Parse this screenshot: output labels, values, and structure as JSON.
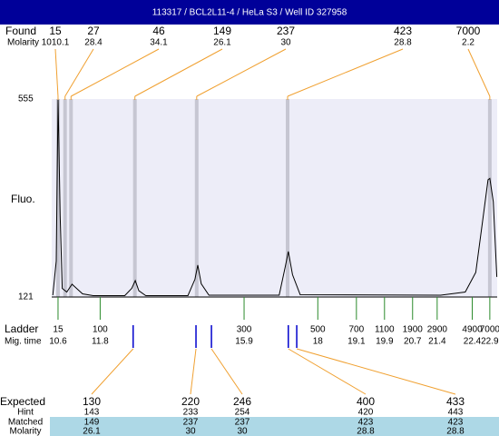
{
  "title": "113317 / BCL2L11-4 / HeLa S3 / Well ID 327958",
  "chart_data": {
    "type": "line",
    "y_label": "Fluo.",
    "color": "#000000",
    "xlim": [
      10.42,
      23.11
    ],
    "ylim": [
      121,
      555
    ],
    "yticks": [
      121,
      555
    ],
    "x": [
      10.45,
      10.55,
      10.6,
      10.66,
      10.72,
      10.85,
      11.0,
      11.1,
      11.3,
      11.6,
      12.5,
      12.7,
      12.8,
      12.9,
      13.1,
      14.3,
      14.5,
      14.58,
      14.68,
      14.9,
      16.9,
      17.08,
      17.16,
      17.28,
      17.5,
      21.5,
      22.2,
      22.5,
      22.7,
      22.85,
      22.9,
      23.0,
      23.1
    ],
    "values": [
      125,
      200,
      556,
      300,
      140,
      132,
      149,
      142,
      128,
      124,
      124,
      140,
      157,
      135,
      124,
      124,
      160,
      191,
      150,
      125,
      125,
      190,
      221,
      170,
      126,
      125,
      132,
      175,
      290,
      378,
      381,
      330,
      165
    ]
  },
  "found": {
    "label": "Found",
    "molarity_label": "Molarity",
    "sizes": [
      15,
      27,
      46,
      149,
      237,
      423,
      7000
    ],
    "molarity": [
      1010.1,
      28.4,
      34.1,
      26.1,
      30,
      28.8,
      2.2
    ],
    "times": [
      10.6,
      10.8,
      10.97,
      12.79,
      14.55,
      17.14,
      22.9
    ]
  },
  "ladder": {
    "label": "Ladder",
    "time_label": "Mig. time",
    "sizes": [
      15,
      100,
      300,
      500,
      700,
      1100,
      1900,
      2900,
      4900,
      7000
    ],
    "times": [
      10.6,
      11.8,
      15.9,
      18,
      19.1,
      19.9,
      20.7,
      21.4,
      22.4,
      22.9
    ]
  },
  "expected": {
    "label": "Expected",
    "hint_label": "Hint",
    "matched_label": "Matched",
    "molarity_label": "Molarity",
    "sizes": [
      130,
      220,
      246,
      400,
      433
    ],
    "hint": [
      143,
      233,
      254,
      420,
      443
    ],
    "matched": [
      149,
      237,
      237,
      423,
      423
    ],
    "molarity": [
      26.1,
      30,
      30,
      28.8,
      28.8
    ],
    "times": [
      12.74,
      14.53,
      14.97,
      17.16,
      17.4
    ]
  }
}
